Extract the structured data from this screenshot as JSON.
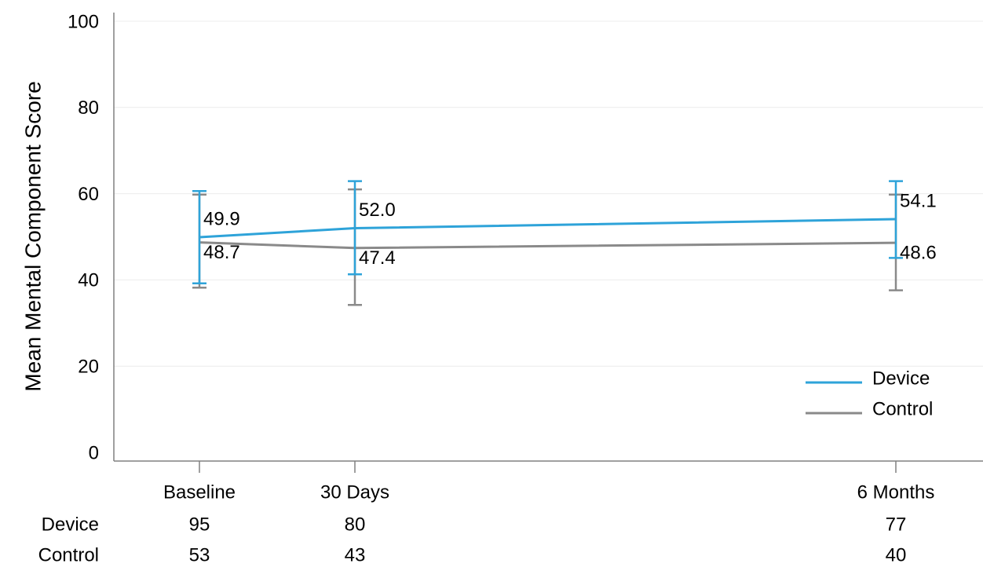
{
  "chart_data": {
    "type": "line",
    "title": "",
    "xlabel": "",
    "ylabel": "Mean Mental Component Score",
    "ylim": [
      0,
      100
    ],
    "yticks": [
      0,
      20,
      40,
      60,
      80,
      100
    ],
    "x_scale": "days",
    "x": [
      0,
      30,
      180
    ],
    "categories": [
      "Baseline",
      "30 Days",
      "6 Months"
    ],
    "grid": true,
    "legend_position": "bottom-right",
    "series": [
      {
        "name": "Device",
        "color": "#2ea3d9",
        "values": [
          49.9,
          52.0,
          54.1
        ],
        "value_labels": [
          "49.9",
          "52.0",
          "54.1"
        ],
        "error_low": [
          39.2,
          41.3,
          45.1
        ],
        "error_high": [
          60.6,
          62.9,
          62.9
        ],
        "counts": [
          "95",
          "80",
          "77"
        ]
      },
      {
        "name": "Control",
        "color": "#8a8a8a",
        "values": [
          48.7,
          47.4,
          48.6
        ],
        "value_labels": [
          "48.7",
          "47.4",
          "48.6"
        ],
        "error_low": [
          38.2,
          34.2,
          37.6
        ],
        "error_high": [
          59.8,
          61.0,
          59.8
        ],
        "counts": [
          "53",
          "43",
          "40"
        ]
      }
    ]
  }
}
